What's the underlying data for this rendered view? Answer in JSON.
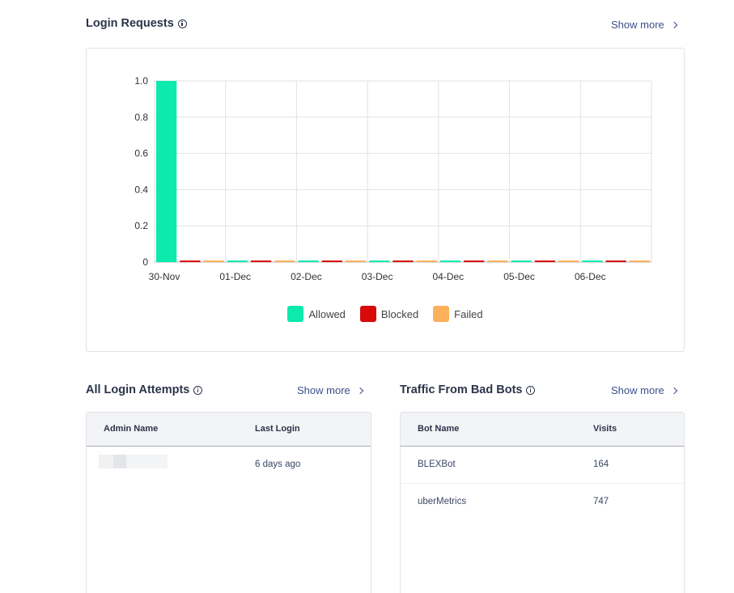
{
  "login_requests": {
    "title": "Login Requests",
    "show_more": "Show more"
  },
  "chart_data": {
    "type": "bar",
    "title": "Login Requests",
    "xlabel": "",
    "ylabel": "",
    "categories": [
      "30-Nov",
      "01-Dec",
      "02-Dec",
      "03-Dec",
      "04-Dec",
      "05-Dec",
      "06-Dec"
    ],
    "series": [
      {
        "name": "Allowed",
        "color": "#0deaad",
        "values": [
          1,
          0,
          0,
          0,
          0,
          0,
          0
        ]
      },
      {
        "name": "Blocked",
        "color": "#d90a0a",
        "values": [
          0,
          0,
          0,
          0,
          0,
          0,
          0
        ]
      },
      {
        "name": "Failed",
        "color": "#fdb15b",
        "values": [
          0,
          0,
          0,
          0,
          0,
          0,
          0
        ]
      }
    ],
    "ylim": [
      0,
      1
    ],
    "yticks": [
      "1.0",
      "0.8",
      "0.6",
      "0.4",
      "0.2",
      "0"
    ],
    "ytick_values": [
      1,
      0.8,
      0.6,
      0.4,
      0.2,
      0
    ],
    "grid": true,
    "legend_position": "bottom"
  },
  "login_attempts": {
    "title": "All Login Attempts",
    "show_more": "Show more",
    "columns": [
      "Admin Name",
      "Last Login"
    ],
    "rows": [
      {
        "admin": "",
        "last_login": "6 days ago"
      }
    ]
  },
  "bad_bots": {
    "title": "Traffic From Bad Bots",
    "show_more": "Show more",
    "columns": [
      "Bot Name",
      "Visits"
    ],
    "rows": [
      {
        "bot": "BLEXBot",
        "visits": "164"
      },
      {
        "bot": "uberMetrics",
        "visits": "747"
      }
    ]
  }
}
